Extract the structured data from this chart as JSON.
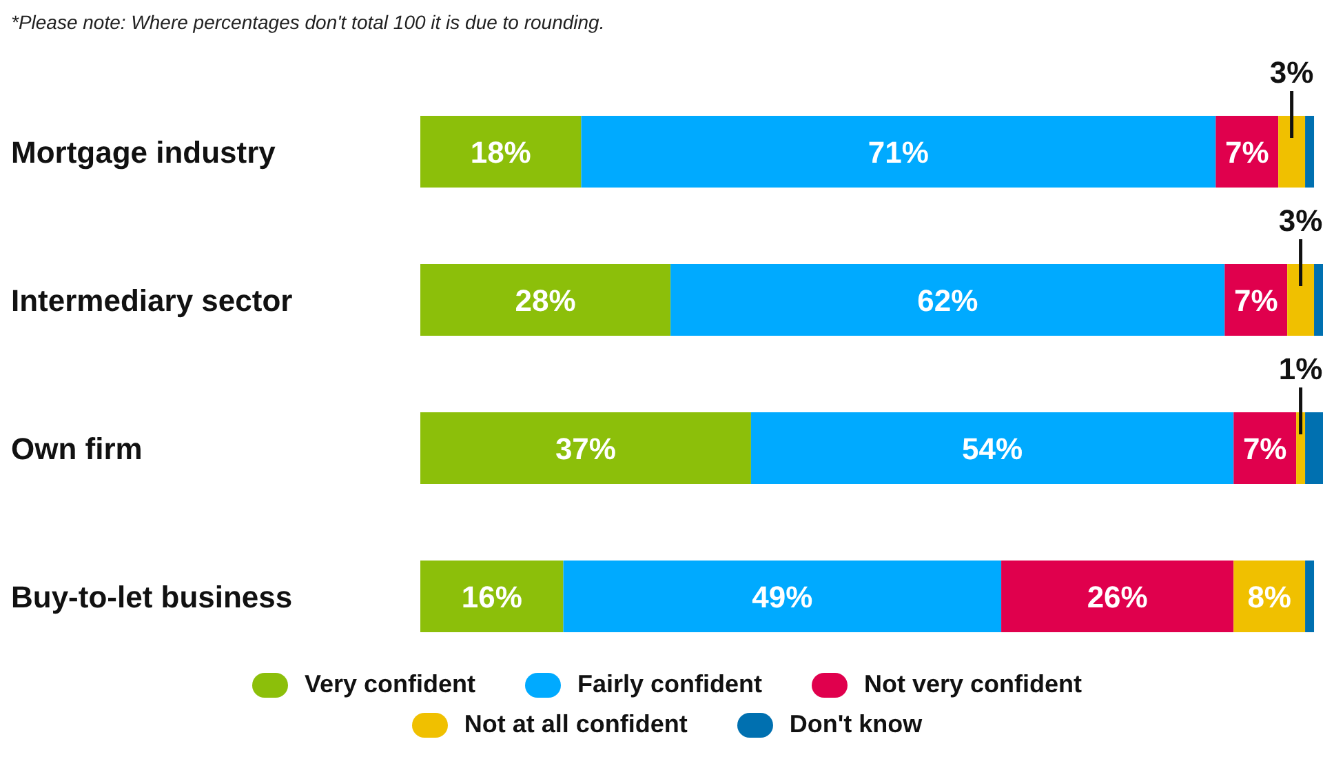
{
  "chart_data": {
    "type": "bar",
    "orientation": "horizontal",
    "stacked": true,
    "annotations": [
      "*Please note: Where percentages don't total 100 it is due to rounding."
    ],
    "categories": [
      "Mortgage industry",
      "Intermediary sector",
      "Own firm",
      "Buy-to-let business"
    ],
    "series": [
      {
        "name": "Very confident",
        "color": "#8cbf0a",
        "values": [
          18,
          28,
          37,
          16
        ],
        "value_labels": [
          "18%",
          "28%",
          "37%",
          "16%"
        ]
      },
      {
        "name": "Fairly confident",
        "color": "#00aaff",
        "values": [
          71,
          62,
          54,
          49
        ],
        "value_labels": [
          "71%",
          "62%",
          "54%",
          "49%"
        ]
      },
      {
        "name": "Not very confident",
        "color": "#e0004d",
        "values": [
          7,
          7,
          7,
          26
        ],
        "value_labels": [
          "7%",
          "7%",
          "7%",
          "26%"
        ]
      },
      {
        "name": "Not at all confident",
        "color": "#f0c000",
        "values": [
          3,
          3,
          1,
          8
        ],
        "value_labels": [
          "3%",
          "3%",
          "1%",
          "8%"
        ]
      },
      {
        "name": "Don't know",
        "color": "#0070b0",
        "values": [
          1,
          1,
          2,
          1
        ],
        "value_labels": [
          null,
          null,
          null,
          null
        ]
      }
    ],
    "legend": "bottom",
    "grid": false
  }
}
